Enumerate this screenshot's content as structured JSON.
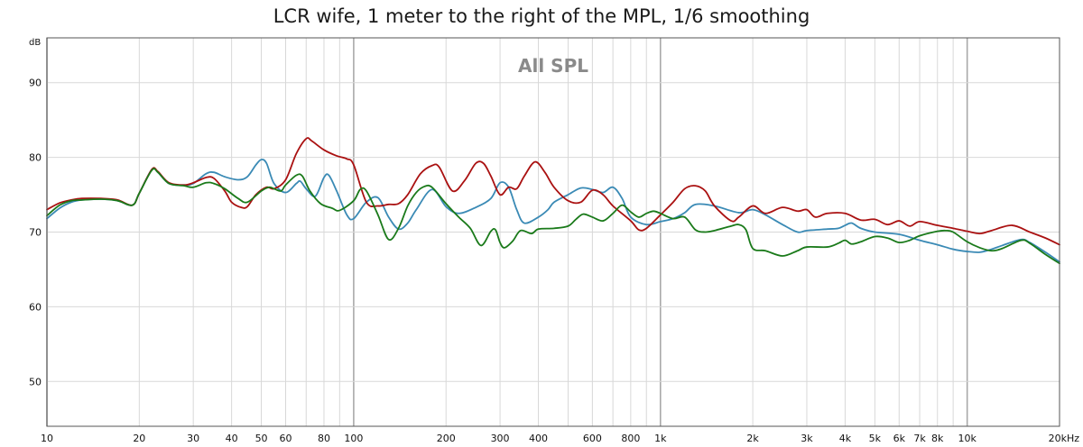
{
  "chart_data": {
    "type": "line",
    "title": "LCR wife, 1 meter to the right of the MPL, 1/6 smoothing",
    "inner_title": "All SPL",
    "y_unit": "dB",
    "x_unit": "",
    "x_scale": "log",
    "xlim": [
      10,
      20000
    ],
    "ylim": [
      44,
      96
    ],
    "grid": true,
    "x_ticks": [
      {
        "v": 10,
        "label": "10"
      },
      {
        "v": 20,
        "label": "20"
      },
      {
        "v": 30,
        "label": "30"
      },
      {
        "v": 40,
        "label": "40"
      },
      {
        "v": 50,
        "label": "50"
      },
      {
        "v": 60,
        "label": "60"
      },
      {
        "v": 80,
        "label": "80"
      },
      {
        "v": 100,
        "label": "100"
      },
      {
        "v": 200,
        "label": "200"
      },
      {
        "v": 300,
        "label": "300"
      },
      {
        "v": 400,
        "label": "400"
      },
      {
        "v": 600,
        "label": "600"
      },
      {
        "v": 800,
        "label": "800"
      },
      {
        "v": 1000,
        "label": "1k"
      },
      {
        "v": 2000,
        "label": "2k"
      },
      {
        "v": 3000,
        "label": "3k"
      },
      {
        "v": 4000,
        "label": "4k"
      },
      {
        "v": 5000,
        "label": "5k"
      },
      {
        "v": 6000,
        "label": "6k"
      },
      {
        "v": 7000,
        "label": "7k"
      },
      {
        "v": 8000,
        "label": "8k"
      },
      {
        "v": 10000,
        "label": "10k"
      },
      {
        "v": 20000,
        "label": "20kHz"
      }
    ],
    "y_ticks": [
      50,
      60,
      70,
      80,
      90
    ],
    "series": [
      {
        "color": "#3a8ab5",
        "points": [
          [
            10,
            71.8
          ],
          [
            11,
            73.2
          ],
          [
            12,
            74.0
          ],
          [
            13,
            74.3
          ],
          [
            15,
            74.4
          ],
          [
            17,
            74.2
          ],
          [
            19,
            73.6
          ],
          [
            20,
            75.2
          ],
          [
            22,
            78.4
          ],
          [
            23,
            78.0
          ],
          [
            25,
            76.5
          ],
          [
            28,
            76.3
          ],
          [
            30,
            76.5
          ],
          [
            33,
            77.8
          ],
          [
            35,
            78.0
          ],
          [
            38,
            77.4
          ],
          [
            42,
            77.0
          ],
          [
            45,
            77.4
          ],
          [
            48,
            79.0
          ],
          [
            50,
            79.7
          ],
          [
            52,
            79.2
          ],
          [
            55,
            76.5
          ],
          [
            60,
            75.3
          ],
          [
            65,
            76.5
          ],
          [
            67,
            76.8
          ],
          [
            70,
            75.8
          ],
          [
            75,
            74.8
          ],
          [
            80,
            77.3
          ],
          [
            83,
            77.6
          ],
          [
            88,
            75.5
          ],
          [
            95,
            72.3
          ],
          [
            100,
            71.8
          ],
          [
            110,
            74.0
          ],
          [
            120,
            74.6
          ],
          [
            130,
            72.0
          ],
          [
            140,
            70.4
          ],
          [
            150,
            71.2
          ],
          [
            160,
            73.0
          ],
          [
            180,
            75.7
          ],
          [
            200,
            73.4
          ],
          [
            220,
            72.5
          ],
          [
            250,
            73.3
          ],
          [
            280,
            74.5
          ],
          [
            300,
            76.6
          ],
          [
            320,
            76.0
          ],
          [
            340,
            73.0
          ],
          [
            360,
            71.2
          ],
          [
            400,
            72.0
          ],
          [
            430,
            73.0
          ],
          [
            450,
            74.0
          ],
          [
            500,
            75.0
          ],
          [
            550,
            75.9
          ],
          [
            600,
            75.7
          ],
          [
            650,
            75.3
          ],
          [
            700,
            76.0
          ],
          [
            750,
            74.5
          ],
          [
            800,
            72.0
          ],
          [
            900,
            71.0
          ],
          [
            1000,
            71.4
          ],
          [
            1100,
            71.8
          ],
          [
            1200,
            72.6
          ],
          [
            1300,
            73.7
          ],
          [
            1500,
            73.5
          ],
          [
            1800,
            72.6
          ],
          [
            2000,
            73.0
          ],
          [
            2200,
            72.3
          ],
          [
            2500,
            71.0
          ],
          [
            2800,
            70.0
          ],
          [
            3000,
            70.2
          ],
          [
            3500,
            70.4
          ],
          [
            3800,
            70.5
          ],
          [
            4000,
            70.9
          ],
          [
            4200,
            71.2
          ],
          [
            4500,
            70.5
          ],
          [
            5000,
            70.0
          ],
          [
            6000,
            69.7
          ],
          [
            7000,
            68.9
          ],
          [
            8000,
            68.3
          ],
          [
            9000,
            67.7
          ],
          [
            10000,
            67.4
          ],
          [
            11000,
            67.3
          ],
          [
            12000,
            67.7
          ],
          [
            13000,
            68.2
          ],
          [
            15000,
            69.0
          ],
          [
            16000,
            68.6
          ],
          [
            18000,
            67.3
          ],
          [
            20000,
            66.0
          ]
        ]
      },
      {
        "color": "#aa1111",
        "points": [
          [
            10,
            73.0
          ],
          [
            11,
            73.9
          ],
          [
            12,
            74.3
          ],
          [
            13,
            74.5
          ],
          [
            15,
            74.5
          ],
          [
            17,
            74.3
          ],
          [
            19,
            73.6
          ],
          [
            20,
            75.2
          ],
          [
            22,
            78.4
          ],
          [
            23,
            78.1
          ],
          [
            25,
            76.6
          ],
          [
            28,
            76.3
          ],
          [
            30,
            76.6
          ],
          [
            33,
            77.3
          ],
          [
            35,
            77.2
          ],
          [
            38,
            75.5
          ],
          [
            40,
            74.0
          ],
          [
            43,
            73.3
          ],
          [
            45,
            73.4
          ],
          [
            48,
            75.0
          ],
          [
            52,
            76.0
          ],
          [
            55,
            75.8
          ],
          [
            60,
            77.0
          ],
          [
            65,
            80.5
          ],
          [
            70,
            82.5
          ],
          [
            73,
            82.2
          ],
          [
            80,
            81.0
          ],
          [
            88,
            80.2
          ],
          [
            95,
            79.8
          ],
          [
            100,
            79.0
          ],
          [
            110,
            74.0
          ],
          [
            120,
            73.5
          ],
          [
            130,
            73.7
          ],
          [
            140,
            73.8
          ],
          [
            150,
            75.0
          ],
          [
            165,
            77.8
          ],
          [
            180,
            78.9
          ],
          [
            190,
            78.7
          ],
          [
            210,
            75.5
          ],
          [
            230,
            76.9
          ],
          [
            250,
            79.2
          ],
          [
            265,
            79.2
          ],
          [
            280,
            77.5
          ],
          [
            300,
            75.0
          ],
          [
            320,
            76.0
          ],
          [
            340,
            75.8
          ],
          [
            360,
            77.5
          ],
          [
            390,
            79.4
          ],
          [
            420,
            78.0
          ],
          [
            450,
            76.0
          ],
          [
            500,
            74.2
          ],
          [
            550,
            74.0
          ],
          [
            600,
            75.6
          ],
          [
            650,
            75.0
          ],
          [
            700,
            73.5
          ],
          [
            800,
            71.5
          ],
          [
            850,
            70.3
          ],
          [
            900,
            70.5
          ],
          [
            1000,
            72.3
          ],
          [
            1100,
            74.0
          ],
          [
            1200,
            75.8
          ],
          [
            1300,
            76.2
          ],
          [
            1400,
            75.5
          ],
          [
            1500,
            73.5
          ],
          [
            1700,
            71.5
          ],
          [
            1800,
            72.0
          ],
          [
            2000,
            73.5
          ],
          [
            2200,
            72.5
          ],
          [
            2500,
            73.3
          ],
          [
            2800,
            72.8
          ],
          [
            3000,
            73.0
          ],
          [
            3200,
            72.0
          ],
          [
            3500,
            72.5
          ],
          [
            4000,
            72.5
          ],
          [
            4500,
            71.6
          ],
          [
            5000,
            71.7
          ],
          [
            5500,
            71.0
          ],
          [
            6000,
            71.5
          ],
          [
            6500,
            70.8
          ],
          [
            7000,
            71.4
          ],
          [
            8000,
            70.9
          ],
          [
            9000,
            70.5
          ],
          [
            10000,
            70.1
          ],
          [
            11000,
            69.8
          ],
          [
            12000,
            70.2
          ],
          [
            14000,
            70.9
          ],
          [
            16000,
            70.0
          ],
          [
            18000,
            69.2
          ],
          [
            20000,
            68.3
          ]
        ]
      },
      {
        "color": "#1a7a1a",
        "points": [
          [
            10,
            72.2
          ],
          [
            11,
            73.6
          ],
          [
            12,
            74.2
          ],
          [
            13,
            74.3
          ],
          [
            15,
            74.4
          ],
          [
            17,
            74.2
          ],
          [
            19,
            73.6
          ],
          [
            20,
            75.2
          ],
          [
            22,
            78.3
          ],
          [
            23,
            78.0
          ],
          [
            25,
            76.5
          ],
          [
            28,
            76.2
          ],
          [
            30,
            76.0
          ],
          [
            33,
            76.6
          ],
          [
            35,
            76.5
          ],
          [
            38,
            75.8
          ],
          [
            42,
            74.5
          ],
          [
            45,
            74.0
          ],
          [
            50,
            75.5
          ],
          [
            53,
            76.0
          ],
          [
            55,
            75.8
          ],
          [
            58,
            75.5
          ],
          [
            60,
            76.3
          ],
          [
            65,
            77.6
          ],
          [
            68,
            77.5
          ],
          [
            72,
            75.5
          ],
          [
            78,
            73.8
          ],
          [
            85,
            73.2
          ],
          [
            90,
            72.9
          ],
          [
            100,
            74.2
          ],
          [
            105,
            75.7
          ],
          [
            110,
            75.5
          ],
          [
            120,
            72.3
          ],
          [
            130,
            69.0
          ],
          [
            140,
            70.5
          ],
          [
            150,
            73.5
          ],
          [
            160,
            75.3
          ],
          [
            170,
            76.1
          ],
          [
            180,
            76.0
          ],
          [
            200,
            73.8
          ],
          [
            220,
            72.0
          ],
          [
            240,
            70.5
          ],
          [
            260,
            68.2
          ],
          [
            280,
            70.1
          ],
          [
            290,
            70.3
          ],
          [
            300,
            68.6
          ],
          [
            310,
            67.9
          ],
          [
            330,
            68.8
          ],
          [
            350,
            70.2
          ],
          [
            380,
            69.8
          ],
          [
            400,
            70.4
          ],
          [
            450,
            70.5
          ],
          [
            500,
            70.8
          ],
          [
            530,
            71.7
          ],
          [
            560,
            72.4
          ],
          [
            600,
            72.0
          ],
          [
            650,
            71.5
          ],
          [
            700,
            72.5
          ],
          [
            750,
            73.6
          ],
          [
            800,
            72.7
          ],
          [
            850,
            72.0
          ],
          [
            900,
            72.5
          ],
          [
            950,
            72.8
          ],
          [
            1000,
            72.5
          ],
          [
            1100,
            71.8
          ],
          [
            1200,
            72.0
          ],
          [
            1300,
            70.3
          ],
          [
            1400,
            70.0
          ],
          [
            1500,
            70.2
          ],
          [
            1700,
            70.8
          ],
          [
            1800,
            71.0
          ],
          [
            1900,
            70.3
          ],
          [
            2000,
            67.8
          ],
          [
            2200,
            67.5
          ],
          [
            2500,
            66.8
          ],
          [
            2800,
            67.5
          ],
          [
            3000,
            68.0
          ],
          [
            3500,
            68.0
          ],
          [
            3800,
            68.5
          ],
          [
            4000,
            68.9
          ],
          [
            4200,
            68.4
          ],
          [
            4500,
            68.7
          ],
          [
            5000,
            69.4
          ],
          [
            5500,
            69.2
          ],
          [
            6000,
            68.6
          ],
          [
            6500,
            68.9
          ],
          [
            7000,
            69.5
          ],
          [
            8000,
            70.1
          ],
          [
            8500,
            70.2
          ],
          [
            9000,
            70.0
          ],
          [
            10000,
            68.7
          ],
          [
            11000,
            67.9
          ],
          [
            12000,
            67.5
          ],
          [
            13000,
            67.8
          ],
          [
            15000,
            68.9
          ],
          [
            16000,
            68.5
          ],
          [
            18000,
            67.0
          ],
          [
            20000,
            65.8
          ]
        ]
      }
    ]
  }
}
